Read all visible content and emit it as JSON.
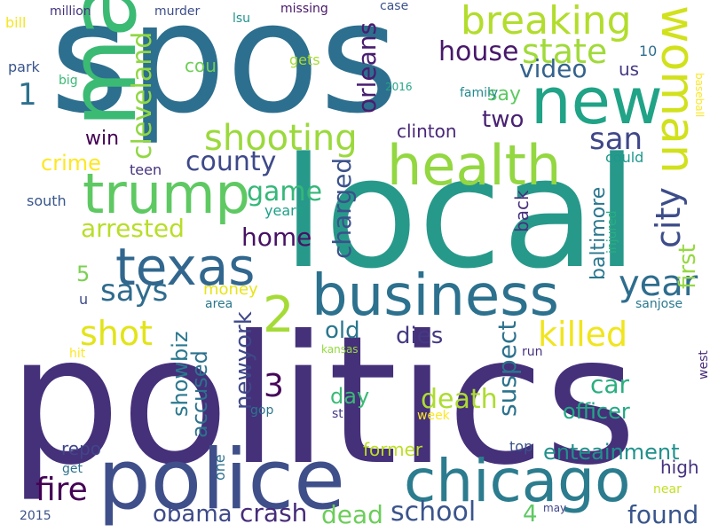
{
  "word_cloud": {
    "words": [
      {
        "text": "politics",
        "color": "#45307a"
      },
      {
        "text": "local",
        "color": "#27998a"
      },
      {
        "text": "spos",
        "color": "#2d6f8e"
      },
      {
        "text": "man",
        "color": "#3bba74"
      },
      {
        "text": "police",
        "color": "#3f4f8a"
      },
      {
        "text": "chicago",
        "color": "#2b7c8e"
      },
      {
        "text": "business",
        "color": "#2c718e"
      },
      {
        "text": "new",
        "color": "#20a386"
      },
      {
        "text": "health",
        "color": "#93d741"
      },
      {
        "text": "trump",
        "color": "#5ec962"
      },
      {
        "text": "texas",
        "color": "#31678e"
      },
      {
        "text": "breaking",
        "color": "#b2dd2c"
      },
      {
        "text": "woman",
        "color": "#d1e11c"
      },
      {
        "text": "shooting",
        "color": "#9bd93c"
      },
      {
        "text": "2",
        "color": "#a5db36"
      },
      {
        "text": "state",
        "color": "#a0da39"
      },
      {
        "text": "city",
        "color": "#3d4d8a"
      },
      {
        "text": "year",
        "color": "#2e6d8e"
      },
      {
        "text": "killed",
        "color": "#f1e51d"
      },
      {
        "text": "county",
        "color": "#3e4989"
      },
      {
        "text": "san",
        "color": "#3f4788"
      },
      {
        "text": "says",
        "color": "#2f6c8e"
      },
      {
        "text": "shot",
        "color": "#e2e418"
      },
      {
        "text": "3",
        "color": "#46075a"
      },
      {
        "text": "fire",
        "color": "#440154"
      },
      {
        "text": "house",
        "color": "#48186a"
      },
      {
        "text": "video",
        "color": "#33628d"
      },
      {
        "text": "cleveland",
        "color": "#90d743"
      },
      {
        "text": "orleans",
        "color": "#481d6f"
      },
      {
        "text": "home",
        "color": "#471164"
      },
      {
        "text": "game",
        "color": "#35b779"
      },
      {
        "text": "arrested",
        "color": "#b8de29"
      },
      {
        "text": "charged",
        "color": "#3b518b"
      },
      {
        "text": "first",
        "color": "#95d840"
      },
      {
        "text": "crash",
        "color": "#472c7a"
      },
      {
        "text": "school",
        "color": "#3a548c"
      },
      {
        "text": "death",
        "color": "#addc30"
      },
      {
        "text": "dead",
        "color": "#6ccd5a"
      },
      {
        "text": "found",
        "color": "#39558c"
      },
      {
        "text": "obama",
        "color": "#3e4a89"
      },
      {
        "text": "old",
        "color": "#2a778e"
      },
      {
        "text": "dies",
        "color": "#443983"
      },
      {
        "text": "suspect",
        "color": "#2c728e"
      },
      {
        "text": "newyork",
        "color": "#3f4889"
      },
      {
        "text": "showbiz",
        "color": "#2a788e"
      },
      {
        "text": "accused",
        "color": "#2c728e"
      },
      {
        "text": "car",
        "color": "#29af7f"
      },
      {
        "text": "officer",
        "color": "#22a884"
      },
      {
        "text": "two",
        "color": "#482173"
      },
      {
        "text": "day",
        "color": "#3aba76"
      },
      {
        "text": "enteainment",
        "color": "#21918c"
      },
      {
        "text": "crime",
        "color": "#fde725"
      },
      {
        "text": "1",
        "color": "#2c718e"
      },
      {
        "text": "baltimore",
        "color": "#2a778e"
      },
      {
        "text": "back",
        "color": "#472f7d"
      },
      {
        "text": "say",
        "color": "#5ec962"
      },
      {
        "text": "win",
        "color": "#440154"
      },
      {
        "text": "clinton",
        "color": "#482677"
      },
      {
        "text": "5",
        "color": "#7ad151"
      },
      {
        "text": "4",
        "color": "#5ec962"
      },
      {
        "text": "us",
        "color": "#443a83"
      },
      {
        "text": "cou",
        "color": "#6ece58"
      },
      {
        "text": "high",
        "color": "#46337f"
      },
      {
        "text": "former",
        "color": "#bddf26"
      },
      {
        "text": "repo",
        "color": "#404688"
      },
      {
        "text": "money",
        "color": "#e7e419"
      },
      {
        "text": "teen",
        "color": "#46327e"
      },
      {
        "text": "could",
        "color": "#1f988b"
      },
      {
        "text": "family",
        "color": "#23898e"
      },
      {
        "text": "south",
        "color": "#39568c"
      },
      {
        "text": "years",
        "color": "#1fa088"
      },
      {
        "text": "one",
        "color": "#2d708e"
      },
      {
        "text": "gets",
        "color": "#a8db34"
      },
      {
        "text": "10",
        "color": "#2e6e8e"
      },
      {
        "text": "park",
        "color": "#39558c"
      },
      {
        "text": "top",
        "color": "#3b528b"
      },
      {
        "text": "bill",
        "color": "#f6e620"
      },
      {
        "text": "million",
        "color": "#45337d"
      },
      {
        "text": "missing",
        "color": "#481769"
      },
      {
        "text": "case",
        "color": "#3b528b"
      },
      {
        "text": "murder",
        "color": "#3d4e8a"
      },
      {
        "text": "lsu",
        "color": "#20928c"
      },
      {
        "text": "2016",
        "color": "#22a785"
      },
      {
        "text": "big",
        "color": "#3aba76"
      },
      {
        "text": "baseball",
        "color": "#fde725"
      },
      {
        "text": "injured",
        "color": "#28ae80"
      },
      {
        "text": "area",
        "color": "#2a778e"
      },
      {
        "text": "u",
        "color": "#3e4a89"
      },
      {
        "text": "sanjose",
        "color": "#29798e"
      },
      {
        "text": "hit",
        "color": "#fde725"
      },
      {
        "text": "kansas",
        "color": "#95d840"
      },
      {
        "text": "run",
        "color": "#46337f"
      },
      {
        "text": "west",
        "color": "#472d7b"
      },
      {
        "text": "gop",
        "color": "#2a768e"
      },
      {
        "text": "st",
        "color": "#443a83"
      },
      {
        "text": "week",
        "color": "#fde725"
      },
      {
        "text": "get",
        "color": "#2c718e"
      },
      {
        "text": "near",
        "color": "#c2df23"
      },
      {
        "text": "2015",
        "color": "#3b528b"
      },
      {
        "text": "may",
        "color": "#404588"
      }
    ]
  }
}
